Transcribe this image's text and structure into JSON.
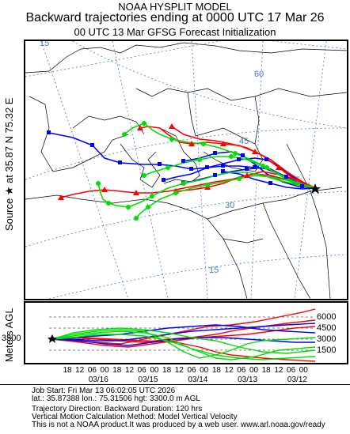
{
  "header": {
    "line1": "NOAA HYSPLIT MODEL",
    "line2": "Backward trajectories ending at 0000 UTC 17 Mar 26",
    "line3": "00 UTC 13 Mar    GFSG  Forecast Initialization"
  },
  "source_label": "Source ★ at   35.87 N   75.32 E",
  "map": {
    "lat_labels": [
      "15",
      "60",
      "45",
      "30",
      "15"
    ],
    "lon_labels": [
      "75"
    ],
    "colors": {
      "red": "#ff0000",
      "blue": "#0000ff",
      "green": "#00e000",
      "map_lines": "#000000",
      "grid": "#4a78c8"
    }
  },
  "altitude": {
    "ylabel": "Meters AGL",
    "start_height": "3300",
    "right_ticks": [
      "6000",
      "4500",
      "3000",
      "1500"
    ],
    "hour_labels": [
      "18",
      "12",
      "06",
      "00",
      "18",
      "12",
      "06",
      "00",
      "18",
      "12",
      "06",
      "00",
      "18",
      "12",
      "06",
      "00",
      "18",
      "12",
      "06",
      "00"
    ],
    "date_labels": [
      "03/16",
      "03/15",
      "03/14",
      "03/13",
      "03/12"
    ]
  },
  "info": {
    "job": "Job Start: Fri Mar 13 06:02:05 UTC 2026",
    "location": "lat.: 35.87388   lon.: 75.31506   hgt: 3300.0 m AGL",
    "direction": "Trajectory Direction: Backward      Duration: 120 hrs",
    "vertical": "Vertical Motion Calculation Method: Model Vertical Velocity",
    "disclaimer": "This is not a NOAA product.It was produced by a web user. www.arl.noaa.gov/ready"
  }
}
